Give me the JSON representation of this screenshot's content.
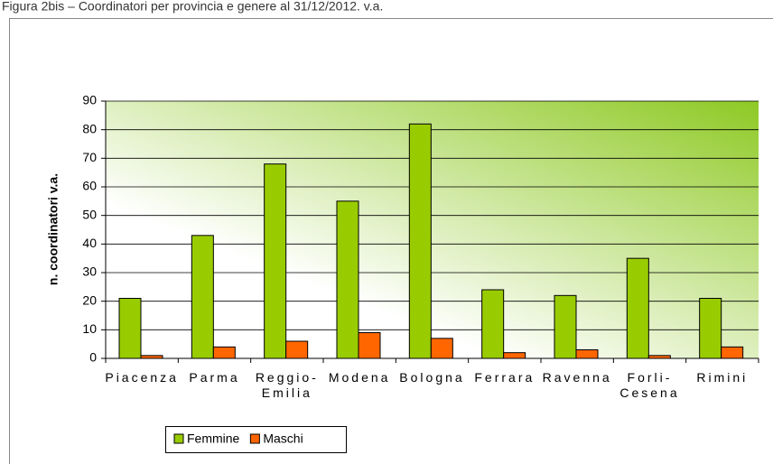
{
  "chart_data": {
    "type": "bar",
    "title": "Figura 2bis – Coordinatori per provincia e genere al 31/12/2012. v.a.",
    "y_label": "n. coordinatori v.a.",
    "categories": [
      "Piacenza",
      "Parma",
      "Reggio-Emilia",
      "Modena",
      "Bologna",
      "Ferrara",
      "Ravenna",
      "Forli-Cesena",
      "Rimini"
    ],
    "series": [
      {
        "name": "Femmine",
        "color": "#99cc00",
        "values": [
          21,
          43,
          68,
          55,
          82,
          24,
          22,
          35,
          21
        ]
      },
      {
        "name": "Maschi",
        "color": "#ff6600",
        "values": [
          1,
          4,
          6,
          9,
          7,
          2,
          3,
          1,
          4
        ]
      }
    ],
    "ylim": [
      0,
      90
    ],
    "yticks": [
      0,
      10,
      20,
      30,
      40,
      50,
      60,
      70,
      80,
      90
    ],
    "grid": true,
    "legend": "bottom"
  }
}
